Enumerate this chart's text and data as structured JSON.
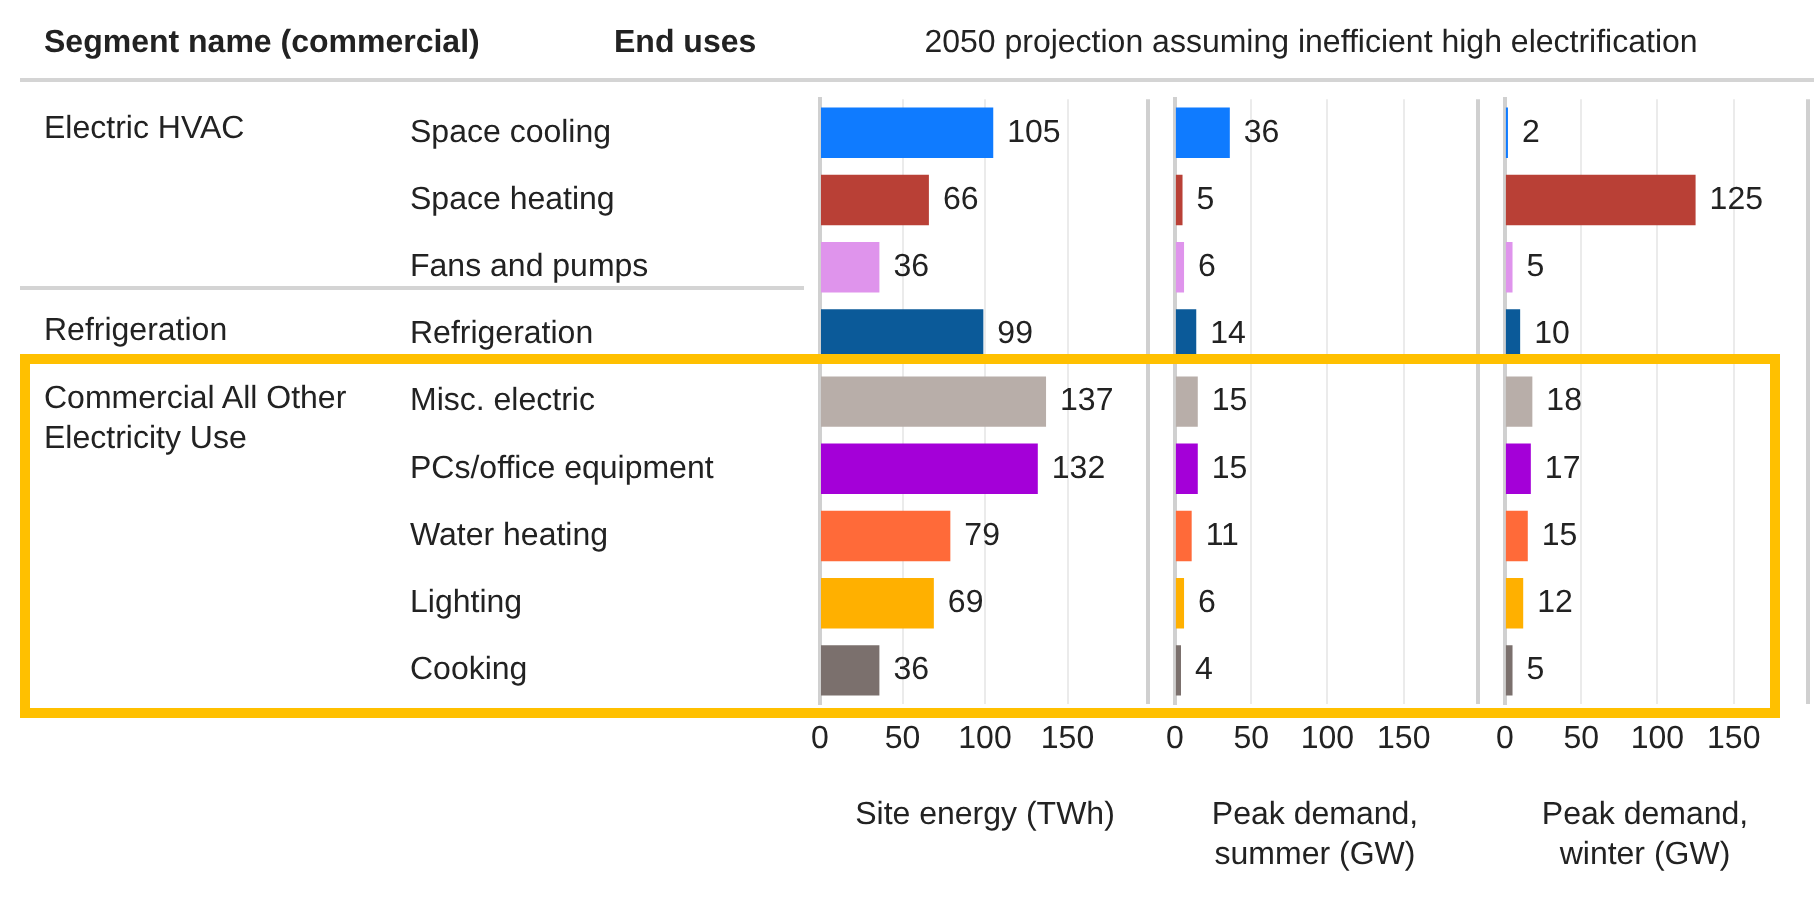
{
  "chart_data": [
    {
      "type": "bar",
      "orientation": "horizontal",
      "title": "2050 projection assuming inefficient high electrification",
      "ylabel": "End uses",
      "xlabel": "Site energy (TWh)",
      "annotations": [
        "Segment name (commercial)",
        "Electric HVAC",
        "Refrigeration",
        "Commercial All Other Electricity Use"
      ],
      "categories": [
        "Space cooling",
        "Space heating",
        "Fans and pumps",
        "Refrigeration",
        "Misc. electric",
        "PCs/office equipment",
        "Water heating",
        "Lighting",
        "Cooking"
      ],
      "values": [
        105,
        66,
        36,
        99,
        137,
        132,
        79,
        69,
        36
      ],
      "colors": [
        "#0f7bff",
        "#b94036",
        "#df94ec",
        "#0b5a99",
        "#b8aea9",
        "#a400d8",
        "#ff6a39",
        "#ffb000",
        "#7b706d"
      ],
      "xlim": [
        0,
        200
      ],
      "xticks": [
        0,
        50,
        100,
        150
      ],
      "grid": "x",
      "data_labels": true
    },
    {
      "type": "bar",
      "orientation": "horizontal",
      "xlabel": "Peak demand, summer (GW)",
      "categories": [
        null,
        null,
        null,
        null,
        null,
        null,
        null,
        null,
        null
      ],
      "values": [
        36,
        5,
        6,
        14,
        15,
        15,
        11,
        6,
        4
      ],
      "colors": [
        "#0f7bff",
        "#b94036",
        "#df94ec",
        "#0b5a99",
        "#b8aea9",
        "#a400d8",
        "#ff6a39",
        "#ffb000",
        "#7b706d"
      ],
      "xlim": [
        0,
        200
      ],
      "xticks": [
        0,
        50,
        100,
        150
      ],
      "grid": "x",
      "data_labels": true
    },
    {
      "type": "bar",
      "orientation": "horizontal",
      "xlabel": "Peak demand, winter (GW)",
      "categories": [
        null,
        null,
        null,
        null,
        null,
        null,
        null,
        null,
        null
      ],
      "values": [
        2,
        125,
        5,
        10,
        18,
        17,
        15,
        12,
        5
      ],
      "colors": [
        "#0f7bff",
        "#b94036",
        "#df94ec",
        "#0b5a99",
        "#b8aea9",
        "#a400d8",
        "#ff6a39",
        "#ffb000",
        "#7b706d"
      ],
      "xlim": [
        0,
        200
      ],
      "xticks": [
        0,
        50,
        100,
        150
      ],
      "grid": "x",
      "data_labels": true
    }
  ]
}
